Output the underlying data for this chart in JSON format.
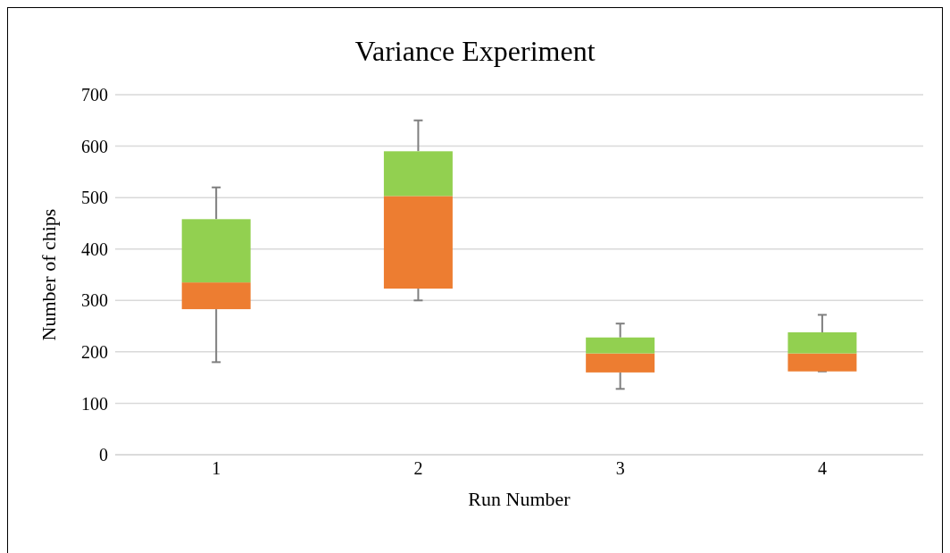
{
  "chart_data": {
    "type": "box",
    "title": "Variance Experiment",
    "xlabel": "Run Number",
    "ylabel": "Number of chips",
    "categories": [
      "1",
      "2",
      "3",
      "4"
    ],
    "boxes": [
      {
        "low": 180,
        "q1": 283,
        "median": 335,
        "q3": 458,
        "high": 520
      },
      {
        "low": 300,
        "q1": 323,
        "median": 503,
        "q3": 590,
        "high": 650
      },
      {
        "low": 128,
        "q1": 160,
        "median": 197,
        "q3": 228,
        "high": 255
      },
      {
        "low": 162,
        "q1": 162,
        "median": 197,
        "q3": 238,
        "high": 272
      }
    ],
    "color": "#92d050",
    "colors": [
      "#ed7d31",
      "#ed7d31",
      "#ed7d31",
      "#ed7d31"
    ],
    "ylim": [
      0,
      700
    ],
    "yticks": [
      0,
      100,
      200,
      300,
      400,
      500,
      600,
      700
    ],
    "grid": "y",
    "legend": false
  }
}
